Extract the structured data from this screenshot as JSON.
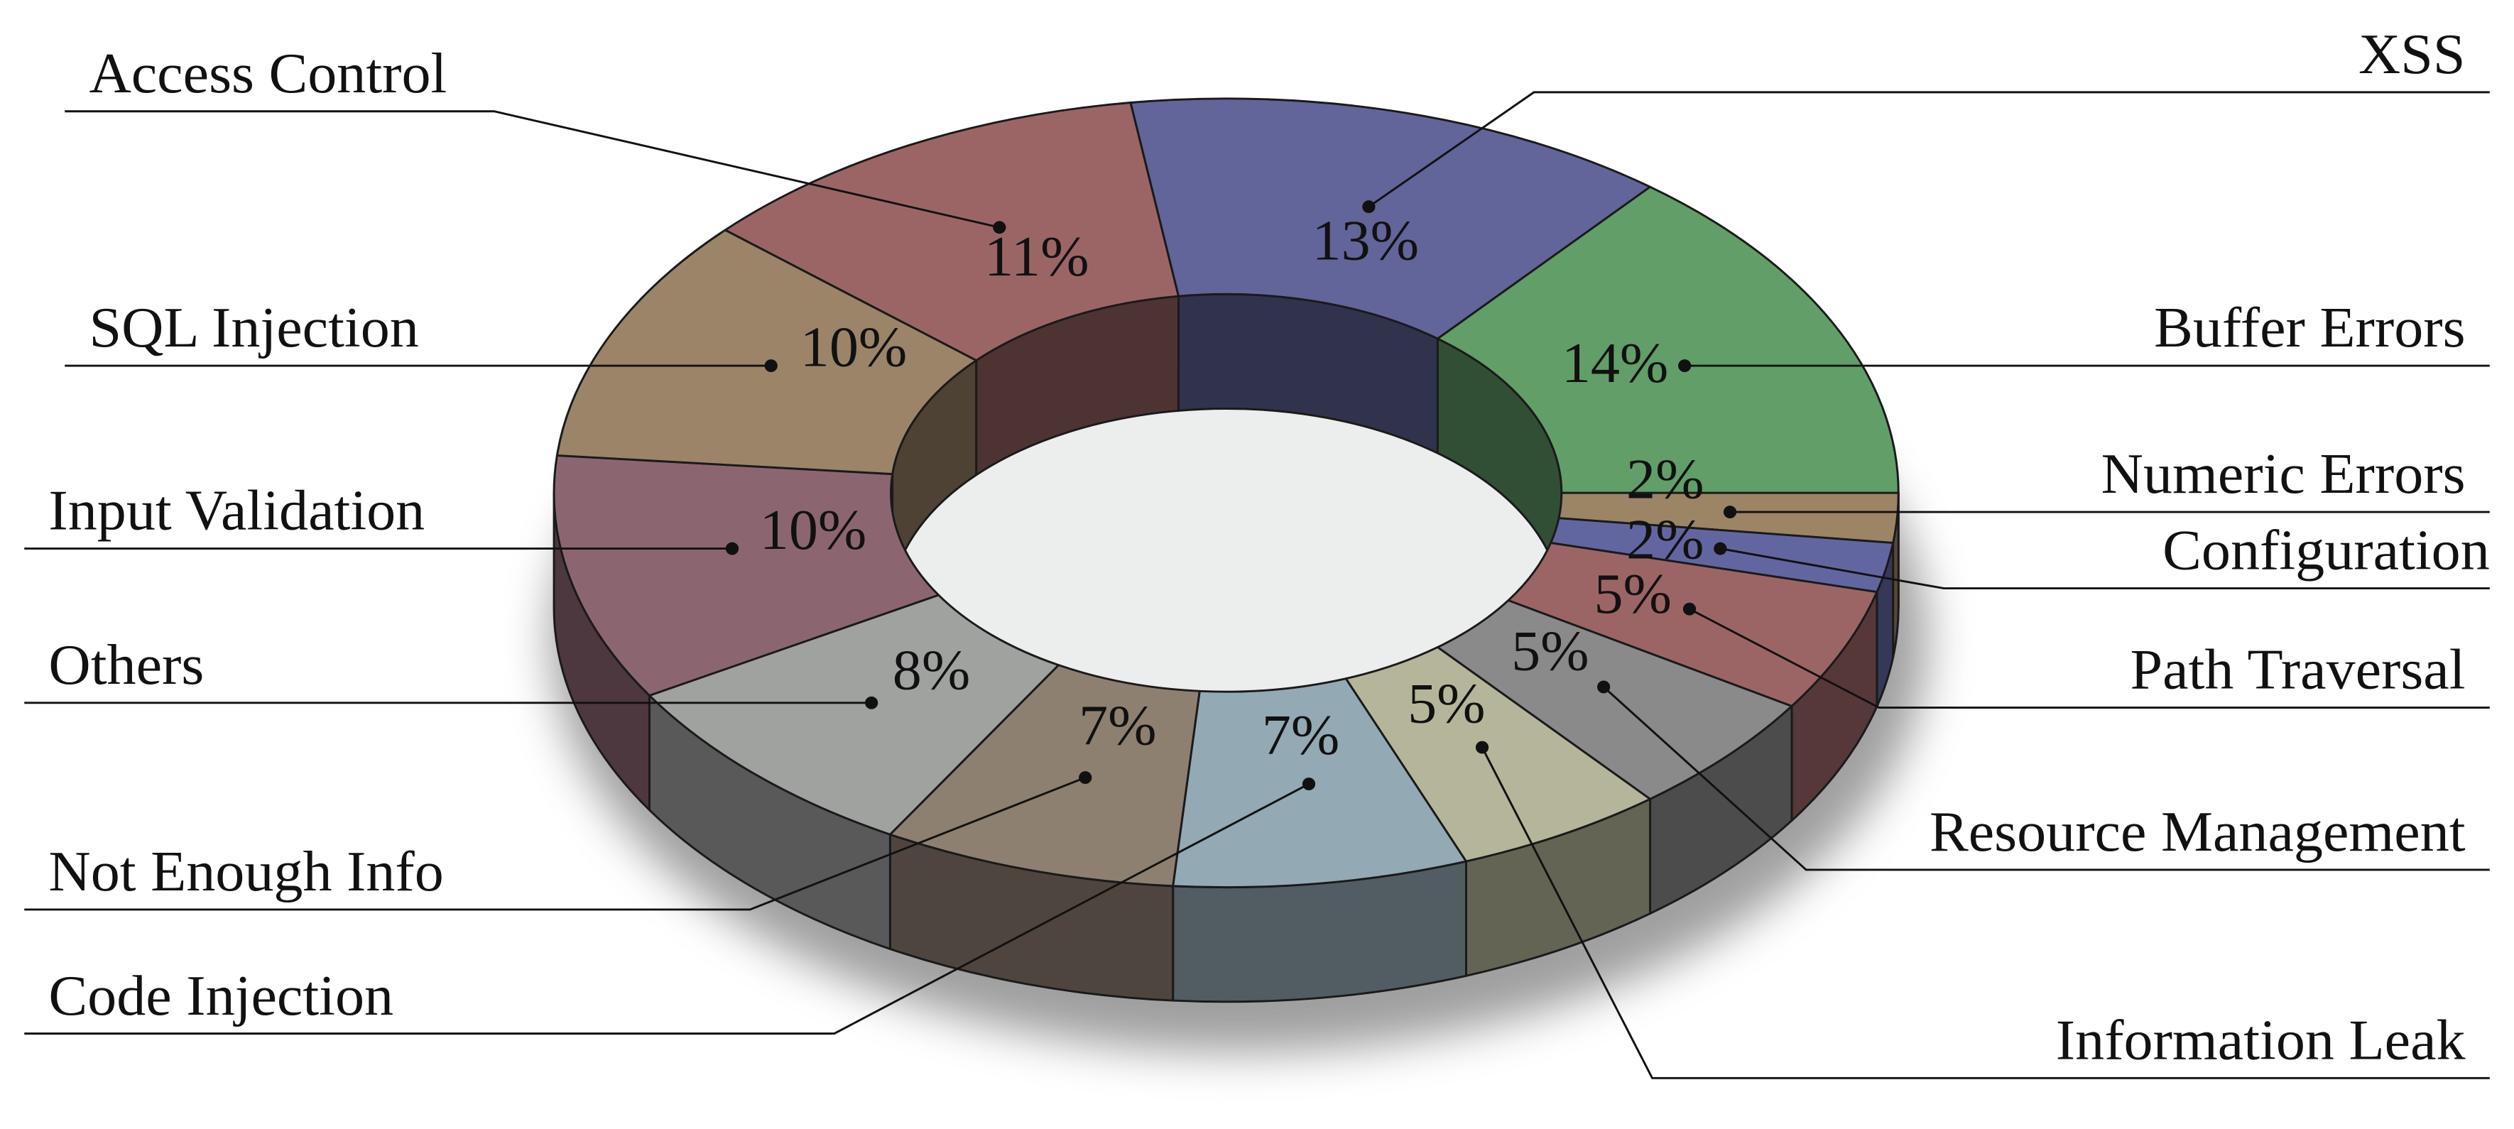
{
  "chart_data": {
    "type": "pie",
    "donut": true,
    "categories": [
      "XSS",
      "Buffer Errors",
      "Numeric Errors",
      "Configuration",
      "Path Traversal",
      "Resource Management",
      "Information Leak",
      "Code Injection",
      "Not Enough Info",
      "Others",
      "Input Validation",
      "SQL Injection",
      "Access Control"
    ],
    "values": [
      13,
      14,
      2,
      2,
      5,
      5,
      5,
      7,
      7,
      8,
      10,
      10,
      11
    ],
    "value_labels": [
      "13%",
      "14%",
      "2%",
      "2%",
      "5%",
      "5%",
      "5%",
      "7%",
      "7%",
      "8%",
      "10%",
      "10%",
      "11%"
    ],
    "colors": [
      "#62659a",
      "#629e68",
      "#9b8565",
      "#6266a0",
      "#9c6565",
      "#8a8a8a",
      "#b5b59a",
      "#93a9b3",
      "#8d8070",
      "#a0a2a0",
      "#8b6670",
      "#9b8468",
      "#9b6566"
    ]
  }
}
